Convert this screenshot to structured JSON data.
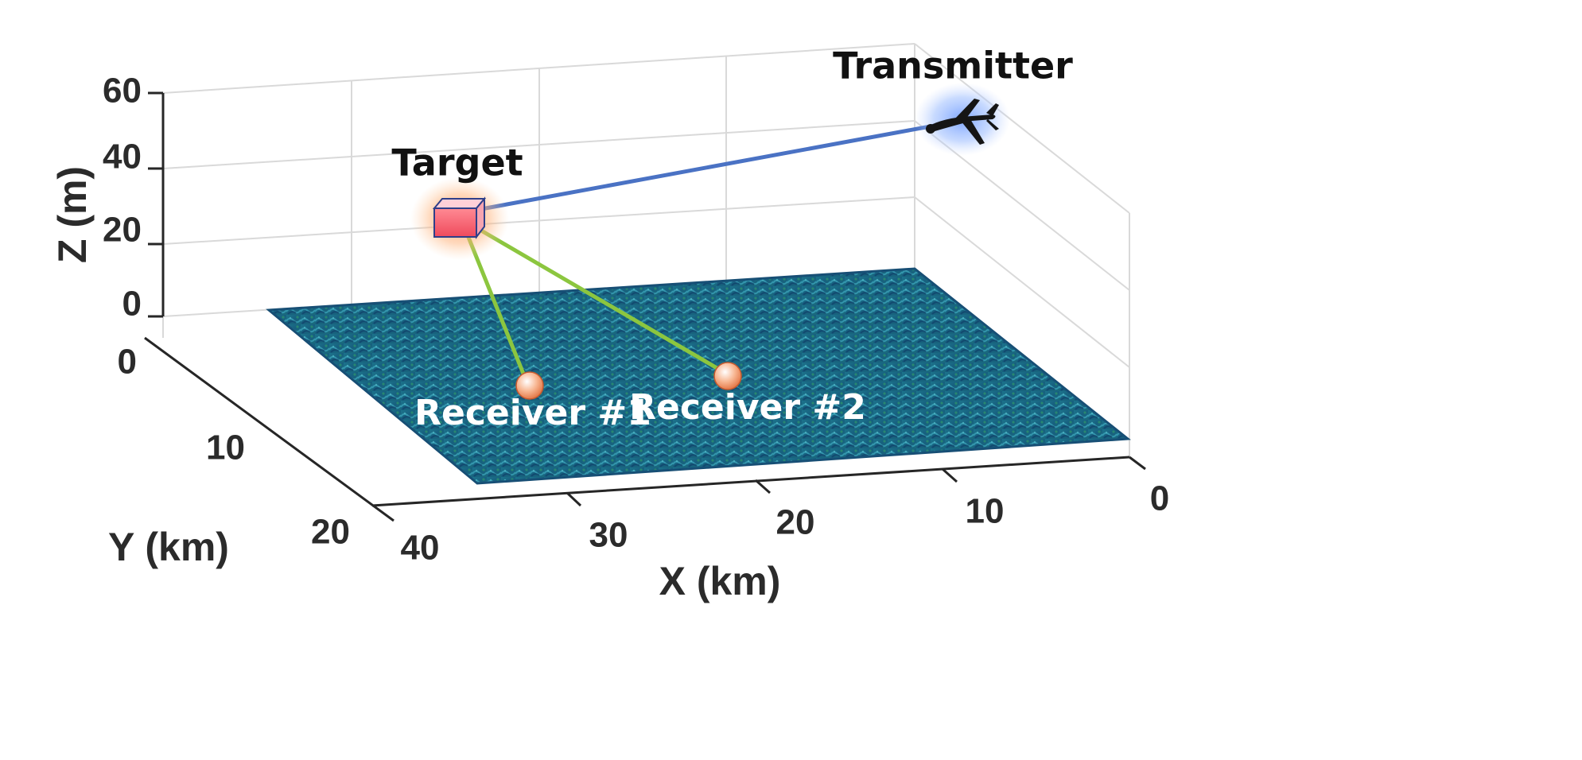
{
  "axes": {
    "x_label": "X (km)",
    "y_label": "Y (km)",
    "z_label": "Z (m)",
    "x_ticks": [
      "40",
      "30",
      "20",
      "10",
      "0"
    ],
    "y_ticks": [
      "0",
      "10",
      "20"
    ],
    "z_ticks": [
      "60",
      "40",
      "20",
      "0"
    ],
    "x_range": [
      0,
      40
    ],
    "y_range": [
      0,
      20
    ],
    "z_range": [
      0,
      60
    ],
    "grid": true
  },
  "labels": {
    "transmitter": "Transmitter",
    "target": "Target",
    "receiver_1": "Receiver #1",
    "receiver_2": "Receiver #2"
  },
  "colors": {
    "surface": "#1f6f8b",
    "surface_highlight": "#3fb3c6",
    "transmitter_link": "#4a72c4",
    "receiver_link": "#8cc63f",
    "target_fill": "#f25a6a",
    "target_glow": "#ff9a5a",
    "transmitter_glow": "#6f9bff",
    "receiver_fill": "#f6a070"
  },
  "icons": {
    "transmitter": "drone-icon",
    "target": "cube-icon",
    "receiver": "sphere-icon"
  }
}
